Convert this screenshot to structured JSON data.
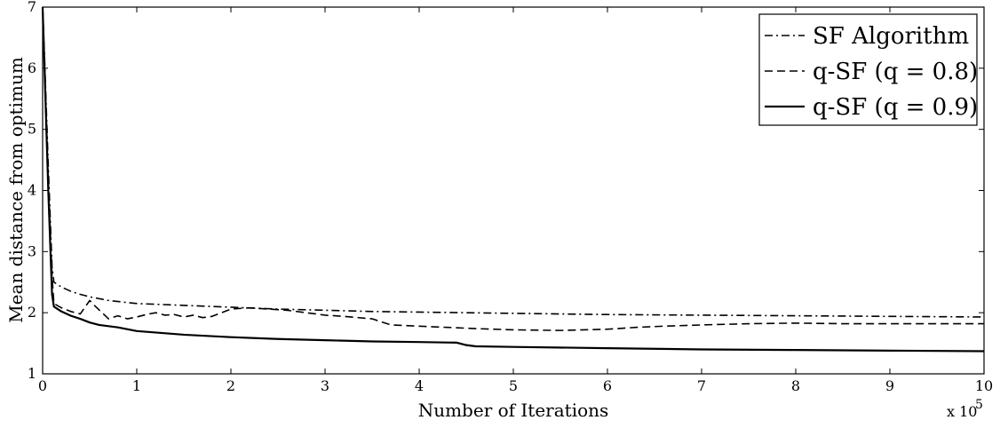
{
  "chart_data": {
    "type": "line",
    "xlabel": "Number of Iterations",
    "ylabel": "Mean distance from optimum",
    "x_multiplier_label": "x 10",
    "x_multiplier_exponent": "5",
    "xlim": [
      0,
      10
    ],
    "ylim": [
      1,
      7
    ],
    "xticks": [
      0,
      1,
      2,
      3,
      4,
      5,
      6,
      7,
      8,
      9,
      10
    ],
    "yticks": [
      1,
      2,
      3,
      4,
      5,
      6,
      7
    ],
    "grid": false,
    "legend_position": "top-right",
    "series": [
      {
        "name": "SF Algorithm",
        "style": "dashdot",
        "color": "#000000",
        "x": [
          0,
          0.02,
          0.06,
          0.1,
          0.12,
          0.2,
          0.3,
          0.4,
          0.5,
          0.7,
          1.0,
          1.5,
          2.0,
          2.5,
          3.0,
          3.5,
          4.0,
          5.0,
          6.0,
          7.0,
          8.0,
          9.0,
          10.0
        ],
        "y": [
          7.0,
          6.2,
          4.4,
          2.75,
          2.5,
          2.42,
          2.35,
          2.3,
          2.26,
          2.2,
          2.15,
          2.12,
          2.09,
          2.06,
          2.04,
          2.02,
          2.01,
          1.99,
          1.97,
          1.96,
          1.95,
          1.94,
          1.93
        ]
      },
      {
        "name": "q-SF (q = 0.8)",
        "style": "dashed",
        "color": "#000000",
        "x": [
          0,
          0.02,
          0.06,
          0.1,
          0.12,
          0.2,
          0.3,
          0.4,
          0.5,
          0.55,
          0.7,
          0.8,
          0.9,
          1.0,
          1.1,
          1.2,
          1.3,
          1.4,
          1.5,
          1.6,
          1.7,
          1.8,
          1.9,
          2.0,
          2.2,
          2.4,
          2.6,
          2.8,
          3.0,
          3.2,
          3.5,
          3.7,
          4.0,
          4.3,
          4.6,
          5.0,
          5.5,
          6.0,
          6.3,
          6.6,
          7.0,
          7.5,
          8.0,
          8.5,
          9.0,
          9.5,
          10.0
        ],
        "y": [
          7.0,
          6.1,
          4.2,
          2.6,
          2.15,
          2.08,
          2.02,
          1.98,
          2.2,
          2.12,
          1.9,
          1.95,
          1.9,
          1.93,
          1.97,
          2.0,
          1.96,
          1.97,
          1.93,
          1.96,
          1.92,
          1.94,
          2.0,
          2.06,
          2.08,
          2.06,
          2.04,
          2.0,
          1.96,
          1.94,
          1.9,
          1.8,
          1.78,
          1.76,
          1.74,
          1.72,
          1.71,
          1.73,
          1.76,
          1.78,
          1.8,
          1.82,
          1.83,
          1.82,
          1.82,
          1.82,
          1.82
        ]
      },
      {
        "name": "q-SF (q = 0.9)",
        "style": "solid",
        "color": "#000000",
        "x": [
          0,
          0.02,
          0.06,
          0.1,
          0.12,
          0.2,
          0.3,
          0.4,
          0.5,
          0.6,
          0.8,
          1.0,
          1.5,
          2.0,
          2.5,
          3.0,
          3.5,
          4.0,
          4.4,
          4.5,
          4.6,
          5.0,
          6.0,
          7.0,
          8.0,
          9.0,
          10.0
        ],
        "y": [
          7.0,
          6.0,
          4.0,
          2.3,
          2.1,
          2.02,
          1.95,
          1.9,
          1.84,
          1.8,
          1.76,
          1.7,
          1.64,
          1.6,
          1.57,
          1.55,
          1.53,
          1.52,
          1.51,
          1.47,
          1.45,
          1.44,
          1.42,
          1.4,
          1.39,
          1.38,
          1.37
        ]
      }
    ]
  }
}
